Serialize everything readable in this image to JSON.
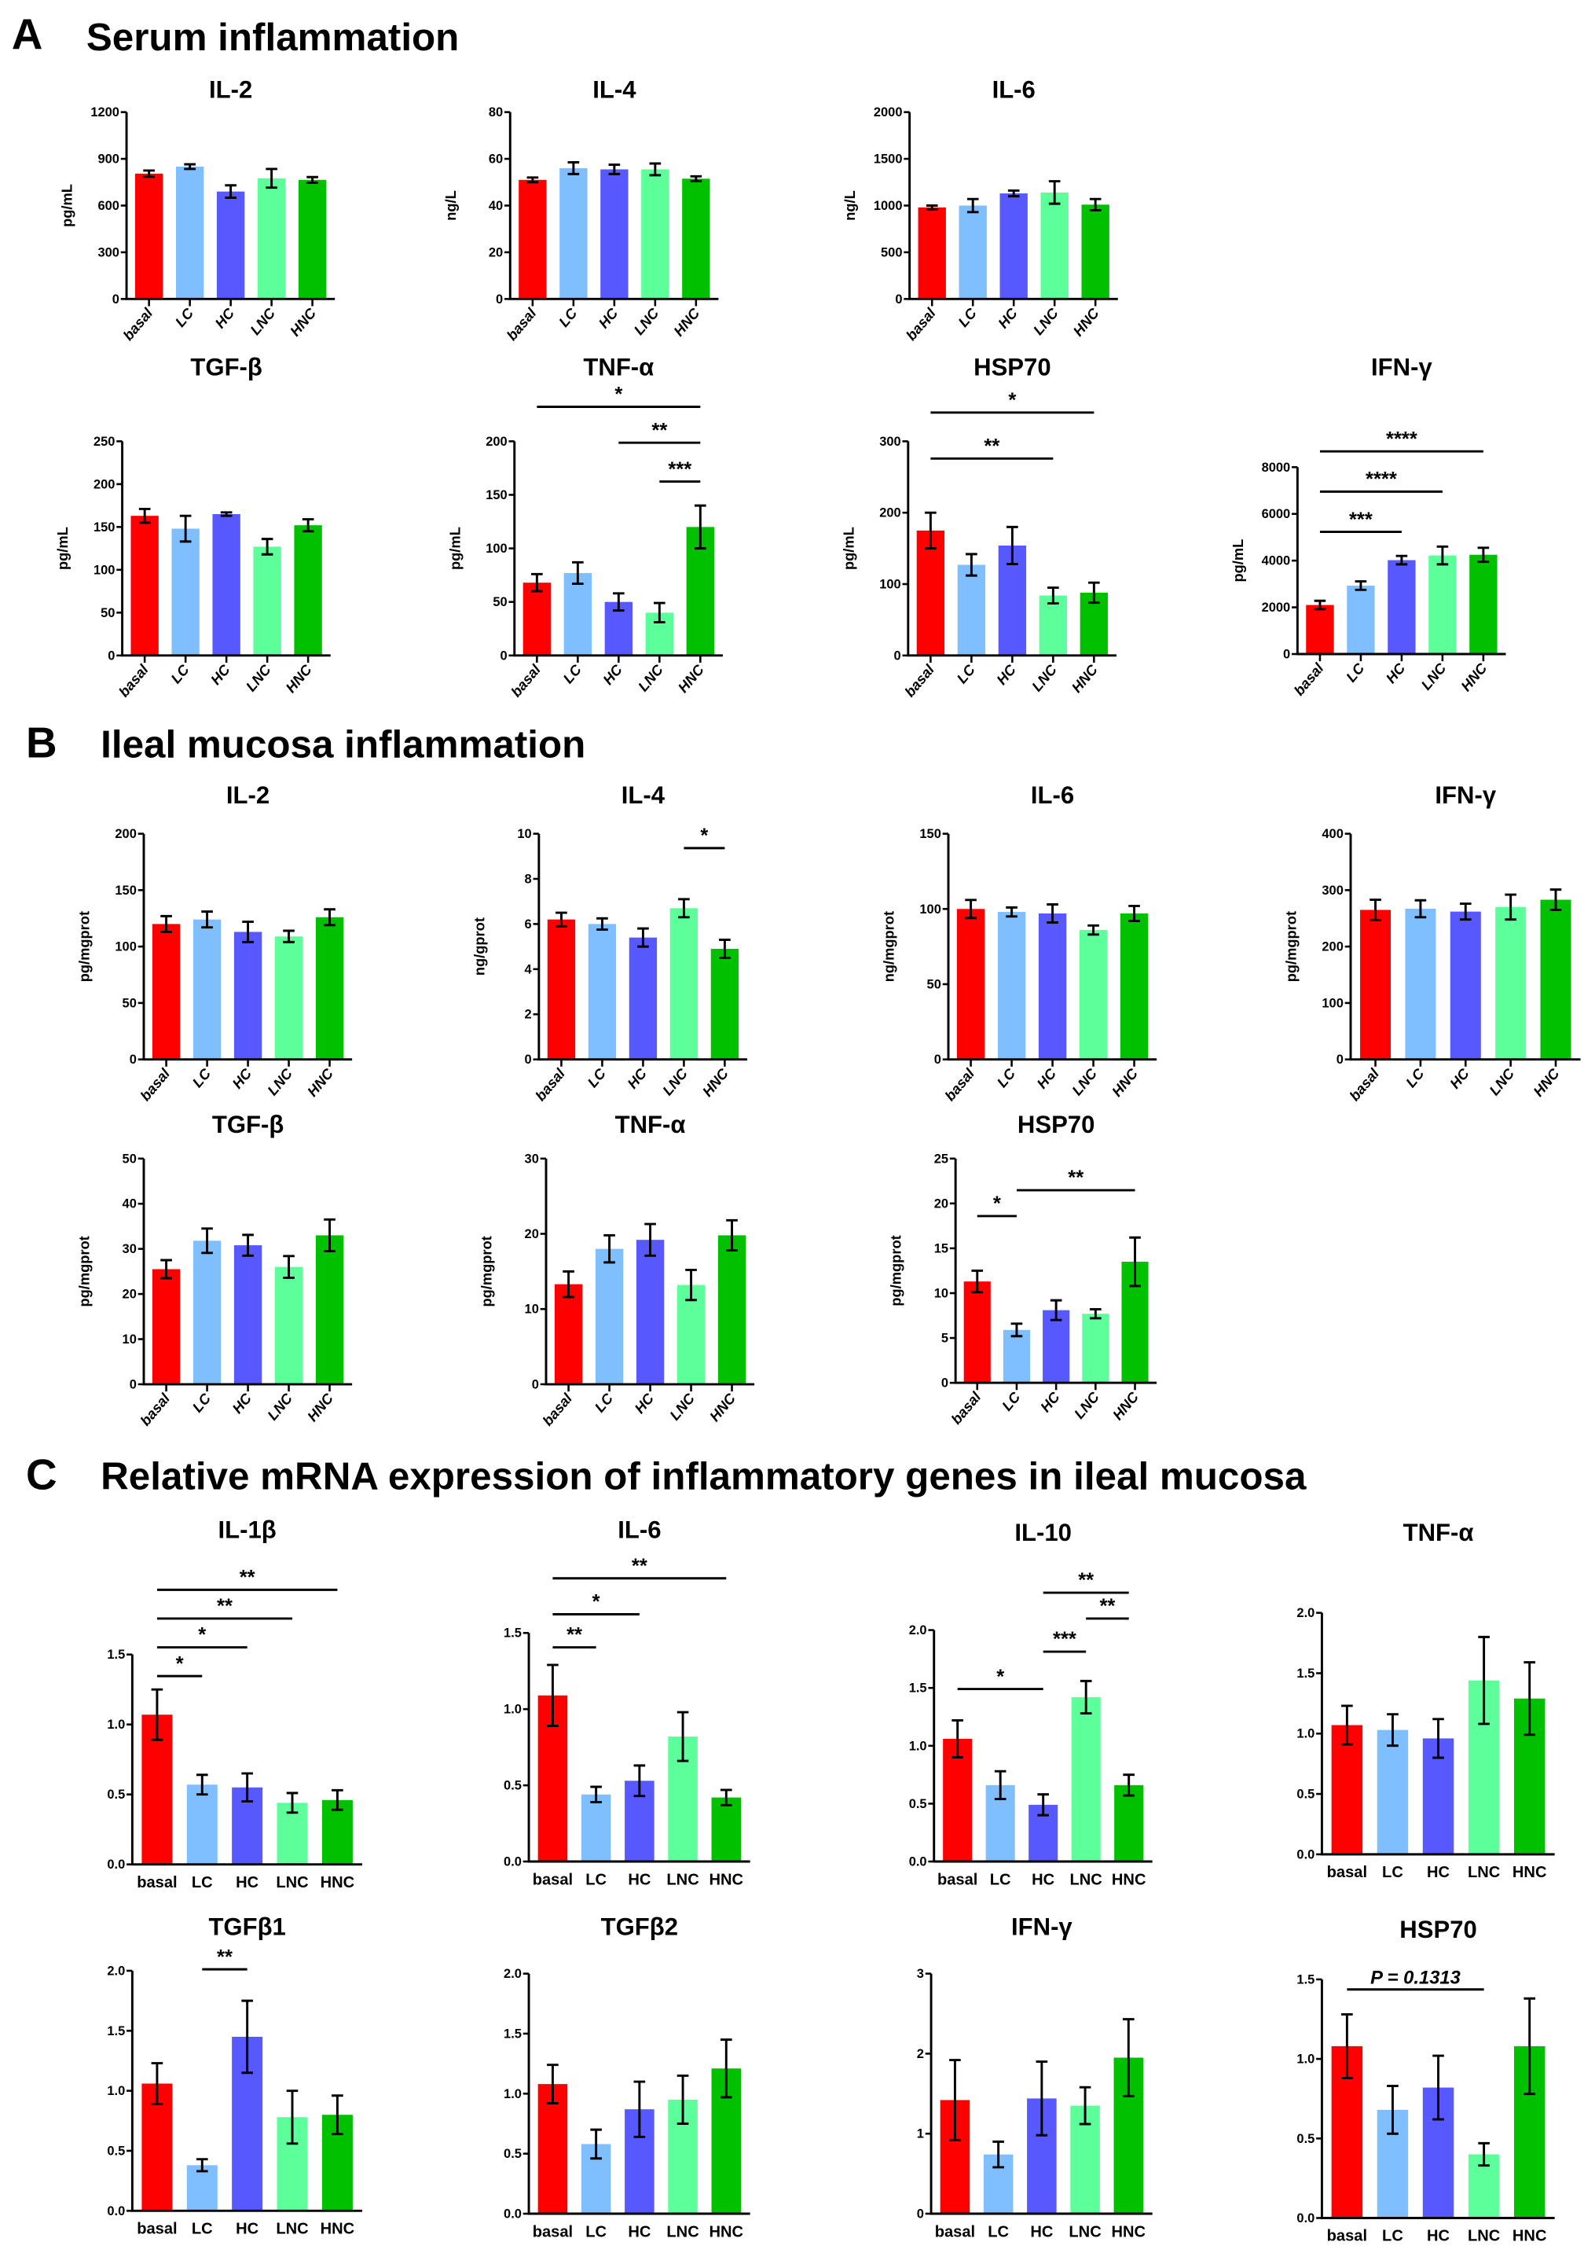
{
  "sections": [
    {
      "letter": "A",
      "title": "Serum inflammation"
    },
    {
      "letter": "B",
      "title": "Ileal mucosa inflammation"
    },
    {
      "letter": "C",
      "title": "Relative mRNA expression of inflammatory genes in ileal mucosa"
    }
  ],
  "colors": [
    "#FF0000",
    "#7FBFFF",
    "#5858FF",
    "#5CFF9A",
    "#00C000"
  ],
  "chart_data": [
    {
      "type": "bar",
      "section": "A",
      "title": "IL-2",
      "ylabel": "pg/mL",
      "categories": [
        "basal",
        "LC",
        "HC",
        "LNC",
        "HNC"
      ],
      "values": [
        805,
        850,
        690,
        775,
        765
      ],
      "errors": [
        20,
        15,
        40,
        60,
        18
      ],
      "ylim": [
        0,
        1200
      ],
      "ytick_step": 300,
      "significance": []
    },
    {
      "type": "bar",
      "section": "A",
      "title": "IL-4",
      "ylabel": "ng/L",
      "categories": [
        "basal",
        "LC",
        "HC",
        "LNC",
        "HNC"
      ],
      "values": [
        51,
        56,
        55.5,
        55.5,
        51.5
      ],
      "errors": [
        1,
        2.5,
        2,
        2.5,
        1
      ],
      "ylim": [
        0,
        80
      ],
      "ytick_step": 20,
      "significance": []
    },
    {
      "type": "bar",
      "section": "A",
      "title": "IL-6",
      "ylabel": "ng/L",
      "categories": [
        "basal",
        "LC",
        "HC",
        "LNC",
        "HNC"
      ],
      "values": [
        980,
        1000,
        1130,
        1140,
        1010
      ],
      "errors": [
        20,
        70,
        30,
        120,
        60
      ],
      "ylim": [
        0,
        2000
      ],
      "ytick_step": 500,
      "significance": []
    },
    {
      "type": "bar",
      "section": "A",
      "title": "TGF-β",
      "ylabel": "pg/mL",
      "categories": [
        "basal",
        "LC",
        "HC",
        "LNC",
        "HNC"
      ],
      "values": [
        163,
        148,
        165,
        127,
        152
      ],
      "errors": [
        8,
        15,
        2,
        9,
        7
      ],
      "ylim": [
        0,
        250
      ],
      "ytick_step": 50,
      "significance": []
    },
    {
      "type": "bar",
      "section": "A",
      "title": "TNF-α",
      "ylabel": "pg/mL",
      "categories": [
        "basal",
        "LC",
        "HC",
        "LNC",
        "HNC"
      ],
      "values": [
        68,
        77,
        50,
        40,
        120
      ],
      "errors": [
        8,
        10,
        8,
        9,
        20
      ],
      "ylim": [
        0,
        200
      ],
      "ytick_step": 50,
      "significance": [
        {
          "from": "basal",
          "to": "HNC",
          "label": "*"
        },
        {
          "from": "HC",
          "to": "HNC",
          "label": "**"
        },
        {
          "from": "LNC",
          "to": "HNC",
          "label": "***"
        }
      ]
    },
    {
      "type": "bar",
      "section": "A",
      "title": "HSP70",
      "ylabel": "pg/mL",
      "categories": [
        "basal",
        "LC",
        "HC",
        "LNC",
        "HNC"
      ],
      "values": [
        175,
        127,
        154,
        84,
        88
      ],
      "errors": [
        25,
        15,
        26,
        11,
        14
      ],
      "ylim": [
        0,
        300
      ],
      "ytick_step": 100,
      "significance": [
        {
          "from": "basal",
          "to": "HNC",
          "label": "*"
        },
        {
          "from": "basal",
          "to": "LNC",
          "label": "**"
        }
      ]
    },
    {
      "type": "bar",
      "section": "A",
      "title": "IFN-γ",
      "ylabel": "pg/mL",
      "categories": [
        "basal",
        "LC",
        "HC",
        "LNC",
        "HNC"
      ],
      "values": [
        2100,
        2930,
        4020,
        4220,
        4250
      ],
      "errors": [
        180,
        180,
        180,
        380,
        300
      ],
      "ylim": [
        0,
        8000
      ],
      "ytick_step": 2000,
      "significance": [
        {
          "from": "basal",
          "to": "HNC",
          "label": "****"
        },
        {
          "from": "basal",
          "to": "LNC",
          "label": "****"
        },
        {
          "from": "basal",
          "to": "HC",
          "label": "***"
        }
      ]
    },
    {
      "type": "bar",
      "section": "B",
      "title": "IL-2",
      "ylabel": "pg/mgprot",
      "categories": [
        "basal",
        "LC",
        "HC",
        "LNC",
        "HNC"
      ],
      "values": [
        120,
        124,
        113,
        109,
        126
      ],
      "errors": [
        7,
        7,
        9,
        5,
        7
      ],
      "ylim": [
        0,
        200
      ],
      "ytick_step": 50,
      "significance": []
    },
    {
      "type": "bar",
      "section": "B",
      "title": "IL-4",
      "ylabel": "ng/gprot",
      "categories": [
        "basal",
        "LC",
        "HC",
        "LNC",
        "HNC"
      ],
      "values": [
        6.2,
        6.0,
        5.4,
        6.7,
        4.9
      ],
      "errors": [
        0.3,
        0.25,
        0.4,
        0.4,
        0.4
      ],
      "ylim": [
        0,
        10
      ],
      "ytick_step": 2,
      "significance": [
        {
          "from": "LNC",
          "to": "HNC",
          "label": "*"
        }
      ]
    },
    {
      "type": "bar",
      "section": "B",
      "title": "IL-6",
      "ylabel": "ng/mgprot",
      "categories": [
        "basal",
        "LC",
        "HC",
        "LNC",
        "HNC"
      ],
      "values": [
        100,
        98,
        97,
        86,
        97
      ],
      "errors": [
        6,
        3,
        6,
        3,
        5
      ],
      "ylim": [
        0,
        150
      ],
      "ytick_step": 50,
      "significance": []
    },
    {
      "type": "bar",
      "section": "B",
      "title": "IFN-γ",
      "ylabel": "pg/mgprot",
      "categories": [
        "basal",
        "LC",
        "HC",
        "LNC",
        "HNC"
      ],
      "values": [
        265,
        267,
        262,
        270,
        283
      ],
      "errors": [
        18,
        15,
        14,
        22,
        18
      ],
      "ylim": [
        0,
        400
      ],
      "ytick_step": 100,
      "significance": []
    },
    {
      "type": "bar",
      "section": "B",
      "title": "TGF-β",
      "ylabel": "pg/mgprot",
      "categories": [
        "basal",
        "LC",
        "HC",
        "LNC",
        "HNC"
      ],
      "values": [
        25.5,
        31.8,
        30.8,
        26,
        33
      ],
      "errors": [
        2,
        2.7,
        2.3,
        2.4,
        3.5
      ],
      "ylim": [
        0,
        50
      ],
      "ytick_step": 10,
      "significance": []
    },
    {
      "type": "bar",
      "section": "B",
      "title": "TNF-α",
      "ylabel": "pg/mgprot",
      "categories": [
        "basal",
        "LC",
        "HC",
        "LNC",
        "HNC"
      ],
      "values": [
        13.3,
        18,
        19.2,
        13.2,
        19.8
      ],
      "errors": [
        1.7,
        1.8,
        2.1,
        2,
        2
      ],
      "ylim": [
        0,
        30
      ],
      "ytick_step": 10,
      "significance": []
    },
    {
      "type": "bar",
      "section": "B",
      "title": "HSP70",
      "ylabel": "pg/mgprot",
      "categories": [
        "basal",
        "LC",
        "HC",
        "LNC",
        "HNC"
      ],
      "values": [
        11.3,
        5.9,
        8.1,
        7.7,
        13.5
      ],
      "errors": [
        1.2,
        0.7,
        1.1,
        0.5,
        2.7
      ],
      "ylim": [
        0,
        25
      ],
      "ytick_step": 5,
      "significance": [
        {
          "from": "basal",
          "to": "LC",
          "label": "*"
        },
        {
          "from": "LC",
          "to": "HNC",
          "label": "**"
        }
      ]
    },
    {
      "type": "bar",
      "section": "C",
      "title": "IL-1β",
      "ylabel": "",
      "categories": [
        "basal",
        "LC",
        "HC",
        "LNC",
        "HNC"
      ],
      "values": [
        1.07,
        0.57,
        0.55,
        0.44,
        0.46
      ],
      "errors": [
        0.18,
        0.07,
        0.1,
        0.07,
        0.07
      ],
      "ylim": [
        0,
        1.5
      ],
      "ytick_step": 0.5,
      "significance": [
        {
          "from": "basal",
          "to": "LC",
          "label": "*"
        },
        {
          "from": "basal",
          "to": "HC",
          "label": "*"
        },
        {
          "from": "basal",
          "to": "LNC",
          "label": "**"
        },
        {
          "from": "basal",
          "to": "HNC",
          "label": "**"
        }
      ]
    },
    {
      "type": "bar",
      "section": "C",
      "title": "IL-6",
      "ylabel": "",
      "categories": [
        "basal",
        "LC",
        "HC",
        "LNC",
        "HNC"
      ],
      "values": [
        1.09,
        0.44,
        0.53,
        0.82,
        0.42
      ],
      "errors": [
        0.2,
        0.05,
        0.1,
        0.16,
        0.05
      ],
      "ylim": [
        0,
        1.5
      ],
      "ytick_step": 0.5,
      "significance": [
        {
          "from": "basal",
          "to": "LC",
          "label": "**"
        },
        {
          "from": "basal",
          "to": "HC",
          "label": "*"
        },
        {
          "from": "basal",
          "to": "HNC",
          "label": "**"
        }
      ]
    },
    {
      "type": "bar",
      "section": "C",
      "title": "IL-10",
      "ylabel": "",
      "categories": [
        "basal",
        "LC",
        "HC",
        "LNC",
        "HNC"
      ],
      "values": [
        1.06,
        0.66,
        0.49,
        1.42,
        0.66
      ],
      "errors": [
        0.16,
        0.12,
        0.09,
        0.14,
        0.09
      ],
      "ylim": [
        0,
        2.0
      ],
      "ytick_step": 0.5,
      "significance": [
        {
          "from": "basal",
          "to": "HC",
          "label": "*"
        },
        {
          "from": "HC",
          "to": "LNC",
          "label": "***"
        },
        {
          "from": "LNC",
          "to": "HNC",
          "label": "**"
        },
        {
          "from": "HC",
          "to": "HNC",
          "label": "**"
        }
      ]
    },
    {
      "type": "bar",
      "section": "C",
      "title": "TNF-α",
      "ylabel": "",
      "categories": [
        "basal",
        "LC",
        "HC",
        "LNC",
        "HNC"
      ],
      "values": [
        1.07,
        1.03,
        0.96,
        1.44,
        1.29
      ],
      "errors": [
        0.16,
        0.13,
        0.16,
        0.36,
        0.3
      ],
      "ylim": [
        0,
        2.0
      ],
      "ytick_step": 0.5,
      "significance": []
    },
    {
      "type": "bar",
      "section": "C",
      "title": "TGFβ1",
      "ylabel": "",
      "categories": [
        "basal",
        "LC",
        "HC",
        "LNC",
        "HNC"
      ],
      "values": [
        1.06,
        0.38,
        1.45,
        0.78,
        0.8
      ],
      "errors": [
        0.17,
        0.05,
        0.3,
        0.22,
        0.16
      ],
      "ylim": [
        0,
        2.0
      ],
      "ytick_step": 0.5,
      "significance": [
        {
          "from": "LC",
          "to": "HC",
          "label": "**"
        }
      ]
    },
    {
      "type": "bar",
      "section": "C",
      "title": "TGFβ2",
      "ylabel": "",
      "categories": [
        "basal",
        "LC",
        "HC",
        "LNC",
        "HNC"
      ],
      "values": [
        1.08,
        0.58,
        0.87,
        0.95,
        1.21
      ],
      "errors": [
        0.16,
        0.12,
        0.23,
        0.2,
        0.24
      ],
      "ylim": [
        0,
        2.0
      ],
      "ytick_step": 0.5,
      "significance": []
    },
    {
      "type": "bar",
      "section": "C",
      "title": "IFN-γ",
      "ylabel": "",
      "categories": [
        "basal",
        "LC",
        "HC",
        "LNC",
        "HNC"
      ],
      "values": [
        1.42,
        0.74,
        1.44,
        1.35,
        1.95
      ],
      "errors": [
        0.5,
        0.16,
        0.46,
        0.23,
        0.48
      ],
      "ylim": [
        0,
        3
      ],
      "ytick_step": 1,
      "significance": []
    },
    {
      "type": "bar",
      "section": "C",
      "title": "HSP70",
      "ylabel": "",
      "categories": [
        "basal",
        "LC",
        "HC",
        "LNC",
        "HNC"
      ],
      "values": [
        1.08,
        0.68,
        0.82,
        0.4,
        1.08
      ],
      "errors": [
        0.2,
        0.15,
        0.2,
        0.07,
        0.3
      ],
      "ylim": [
        0,
        1.5
      ],
      "ytick_step": 0.5,
      "significance": [
        {
          "from": "basal",
          "to": "LNC",
          "label": "P = 0.1313"
        }
      ]
    }
  ]
}
